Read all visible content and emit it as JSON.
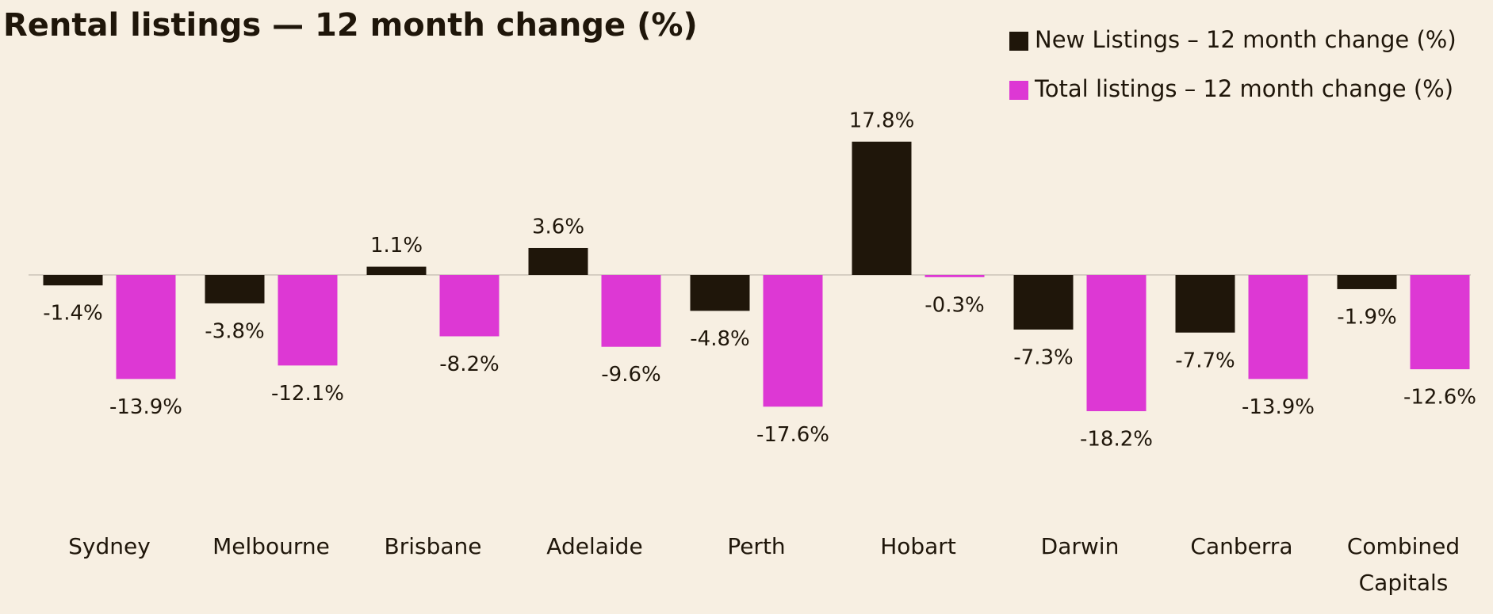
{
  "chart_data": {
    "type": "bar",
    "title": "Rental listings — 12 month change (%)",
    "categories": [
      "Sydney",
      "Melbourne",
      "Brisbane",
      "Adelaide",
      "Perth",
      "Hobart",
      "Darwin",
      "Canberra",
      "Combined Capitals"
    ],
    "series": [
      {
        "name": "New Listings – 12 month change (%)",
        "color": "#1f160a",
        "values": [
          -1.4,
          -3.8,
          1.1,
          3.6,
          -4.8,
          17.8,
          -7.3,
          -7.7,
          -1.9
        ],
        "value_labels": [
          "-1.4%",
          "-3.8%",
          "1.1%",
          "3.6%",
          "-4.8%",
          "17.8%",
          "-7.3%",
          "-7.7%",
          "-1.9%"
        ]
      },
      {
        "name": "Total listings – 12 month change (%)",
        "color": "#dd38d4",
        "values": [
          -13.9,
          -12.1,
          -8.2,
          -9.6,
          -17.6,
          -0.3,
          -18.2,
          -13.9,
          -12.6
        ],
        "value_labels": [
          "-13.9%",
          "-12.1%",
          "-8.2%",
          "-9.6%",
          "-17.6%",
          "-0.3%",
          "-18.2%",
          "-13.9%",
          "-12.6%"
        ]
      }
    ]
  }
}
